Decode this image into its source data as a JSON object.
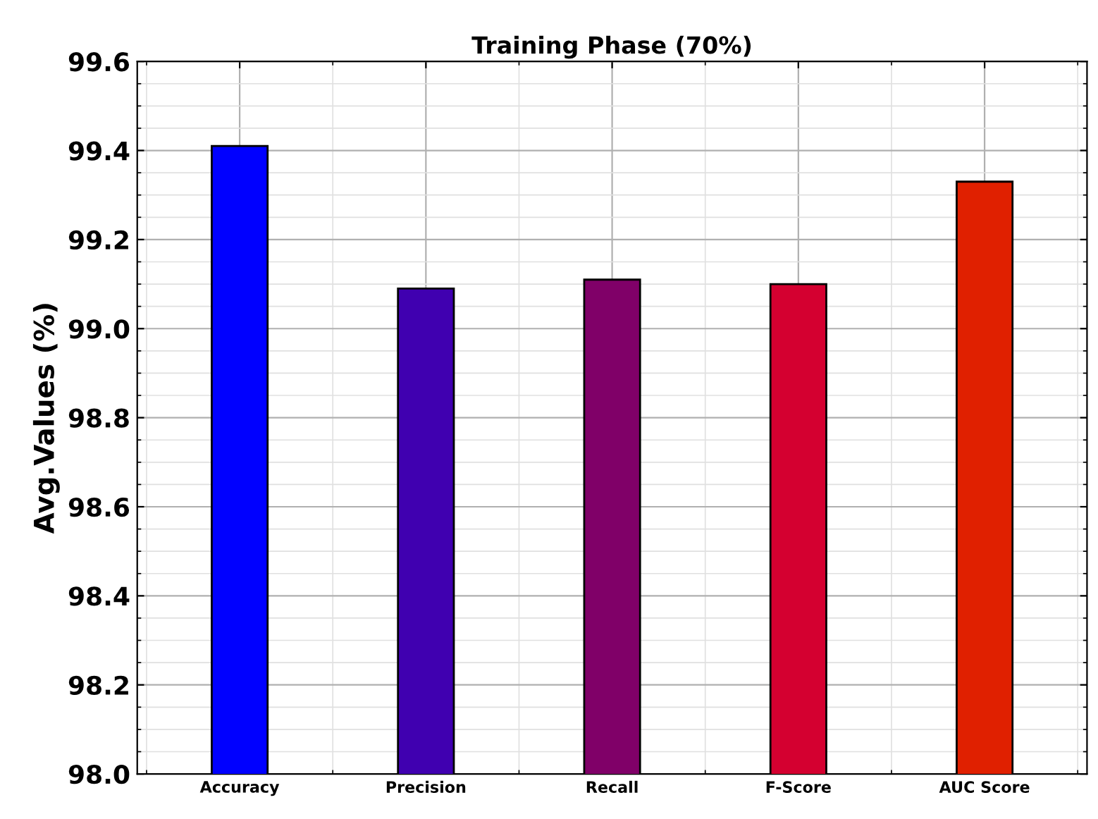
{
  "chart_data": {
    "type": "bar",
    "title": "Training Phase (70%)",
    "ylabel": "Avg.Values (%)",
    "categories": [
      "Accuracy",
      "Precision",
      "Recall",
      "F-Score",
      "AUC Score"
    ],
    "values": [
      99.41,
      99.09,
      99.11,
      99.1,
      99.33
    ],
    "colors": [
      "#0000ff",
      "#4000b0",
      "#800068",
      "#d40030",
      "#e02000"
    ],
    "ylim": [
      98.0,
      99.6
    ],
    "yticks": [
      {
        "value": 98.0,
        "label": "98.0"
      },
      {
        "value": 98.2,
        "label": "98.2"
      },
      {
        "value": 98.4,
        "label": "98.4"
      },
      {
        "value": 98.6,
        "label": "98.6"
      },
      {
        "value": 98.8,
        "label": "98.8"
      },
      {
        "value": 99.0,
        "label": "99.0"
      },
      {
        "value": 99.2,
        "label": "99.2"
      },
      {
        "value": 99.4,
        "label": "99.4"
      },
      {
        "value": 99.6,
        "label": "99.6"
      }
    ],
    "grid": true
  }
}
